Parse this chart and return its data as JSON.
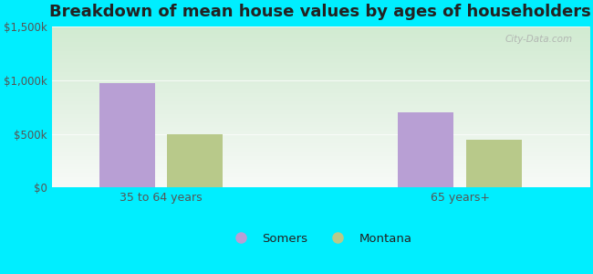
{
  "title": "Breakdown of mean house values by ages of householders",
  "categories": [
    "35 to 64 years",
    "65 years+"
  ],
  "series": {
    "Somers": [
      975000,
      700000
    ],
    "Montana": [
      500000,
      450000
    ]
  },
  "bar_colors": {
    "Somers": "#b89fd4",
    "Montana": "#b8c98a"
  },
  "ylim": [
    0,
    1500000
  ],
  "yticks": [
    0,
    500000,
    1000000,
    1500000
  ],
  "ytick_labels": [
    "$0",
    "$500k",
    "$1,000k",
    "$1,500k"
  ],
  "background_outer": "#00eeff",
  "title_fontsize": 13,
  "watermark": "City-Data.com",
  "bar_width": 0.28,
  "group_positions": [
    1.0,
    2.5
  ],
  "title_color": "#222222",
  "tick_label_color": "#555555",
  "legend_label_color": "#222222"
}
